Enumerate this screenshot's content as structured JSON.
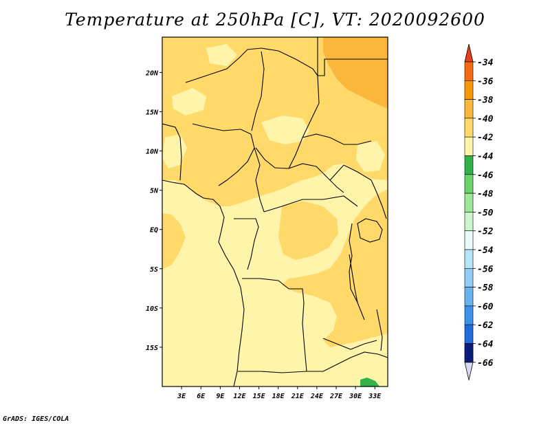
{
  "title": "Temperature at 250hPa [C], VT: 2020092600",
  "credit": "GrADS: IGES/COLA",
  "map": {
    "lat_ticks": [
      {
        "value": 20,
        "label": "20N"
      },
      {
        "value": 15,
        "label": "15N"
      },
      {
        "value": 10,
        "label": "10N"
      },
      {
        "value": 5,
        "label": "5N"
      },
      {
        "value": 0,
        "label": "EQ"
      },
      {
        "value": -5,
        "label": "5S"
      },
      {
        "value": -10,
        "label": "10S"
      },
      {
        "value": -15,
        "label": "15S"
      }
    ],
    "lon_ticks": [
      {
        "value": 3,
        "label": "3E"
      },
      {
        "value": 6,
        "label": "6E"
      },
      {
        "value": 9,
        "label": "9E"
      },
      {
        "value": 12,
        "label": "12E"
      },
      {
        "value": 15,
        "label": "15E"
      },
      {
        "value": 18,
        "label": "18E"
      },
      {
        "value": 21,
        "label": "21E"
      },
      {
        "value": 24,
        "label": "24E"
      },
      {
        "value": 27,
        "label": "27E"
      },
      {
        "value": 30,
        "label": "30E"
      },
      {
        "value": 33,
        "label": "33E"
      }
    ],
    "lon_range": [
      0,
      35
    ],
    "lat_range": [
      -20,
      24.5
    ]
  },
  "legend": {
    "labels": [
      "-34",
      "-36",
      "-38",
      "-40",
      "-42",
      "-44",
      "-46",
      "-48",
      "-50",
      "-52",
      "-54",
      "-56",
      "-58",
      "-60",
      "-62",
      "-64",
      "-66"
    ],
    "top_color": "#e8401a",
    "bottom_color": "#d8d8f8",
    "colors": [
      "#f56a10",
      "#f79a0a",
      "#fbb63c",
      "#ffd96a",
      "#fff5aa",
      "#33b24a",
      "#6cd46c",
      "#9be89b",
      "#ccf5cc",
      "#ebfbfb",
      "#b8e4f8",
      "#92cdf5",
      "#68b2f0",
      "#3f92ea",
      "#1f6cdc",
      "#1a48bc",
      "#0c1c7a"
    ]
  },
  "fills": {
    "base": "#fff5aa",
    "warm": "#ffd96a",
    "warmer": "#fbb63c",
    "green": "#33b24a"
  }
}
